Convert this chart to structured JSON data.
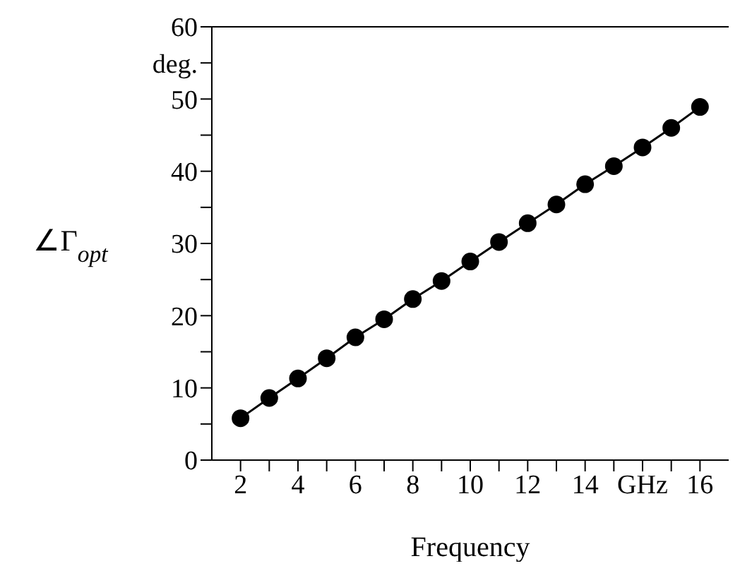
{
  "chart_data": {
    "type": "line",
    "xlabel": "Frequency",
    "ylabel": "∠Γ$_{opt}$",
    "categories": [
      "2",
      null,
      "4",
      null,
      "6",
      null,
      "8",
      null,
      "10",
      null,
      "12",
      null,
      "14",
      null,
      "GHz",
      null,
      "16"
    ],
    "series": [
      {
        "color": "#000000",
        "values": [
          5.8,
          8.6,
          11.3,
          14.1,
          17.0,
          19.5,
          22.3,
          24.8,
          27.5,
          30.2,
          32.8,
          35.4,
          38.2,
          40.7,
          43.3,
          46.0,
          48.9
        ]
      }
    ],
    "ylim": [
      0,
      60
    ],
    "yticks": [
      0,
      {
        "value": 5,
        "label": null
      },
      10,
      {
        "value": 15,
        "label": null
      },
      20,
      {
        "value": 25,
        "label": null
      },
      30,
      {
        "value": 35,
        "label": null
      },
      40,
      {
        "value": 45,
        "label": null
      },
      50,
      {
        "value": 55,
        "label": "deg."
      },
      60
    ],
    "marker": "circle",
    "line_style": "solid",
    "grid": false,
    "legend": false
  }
}
